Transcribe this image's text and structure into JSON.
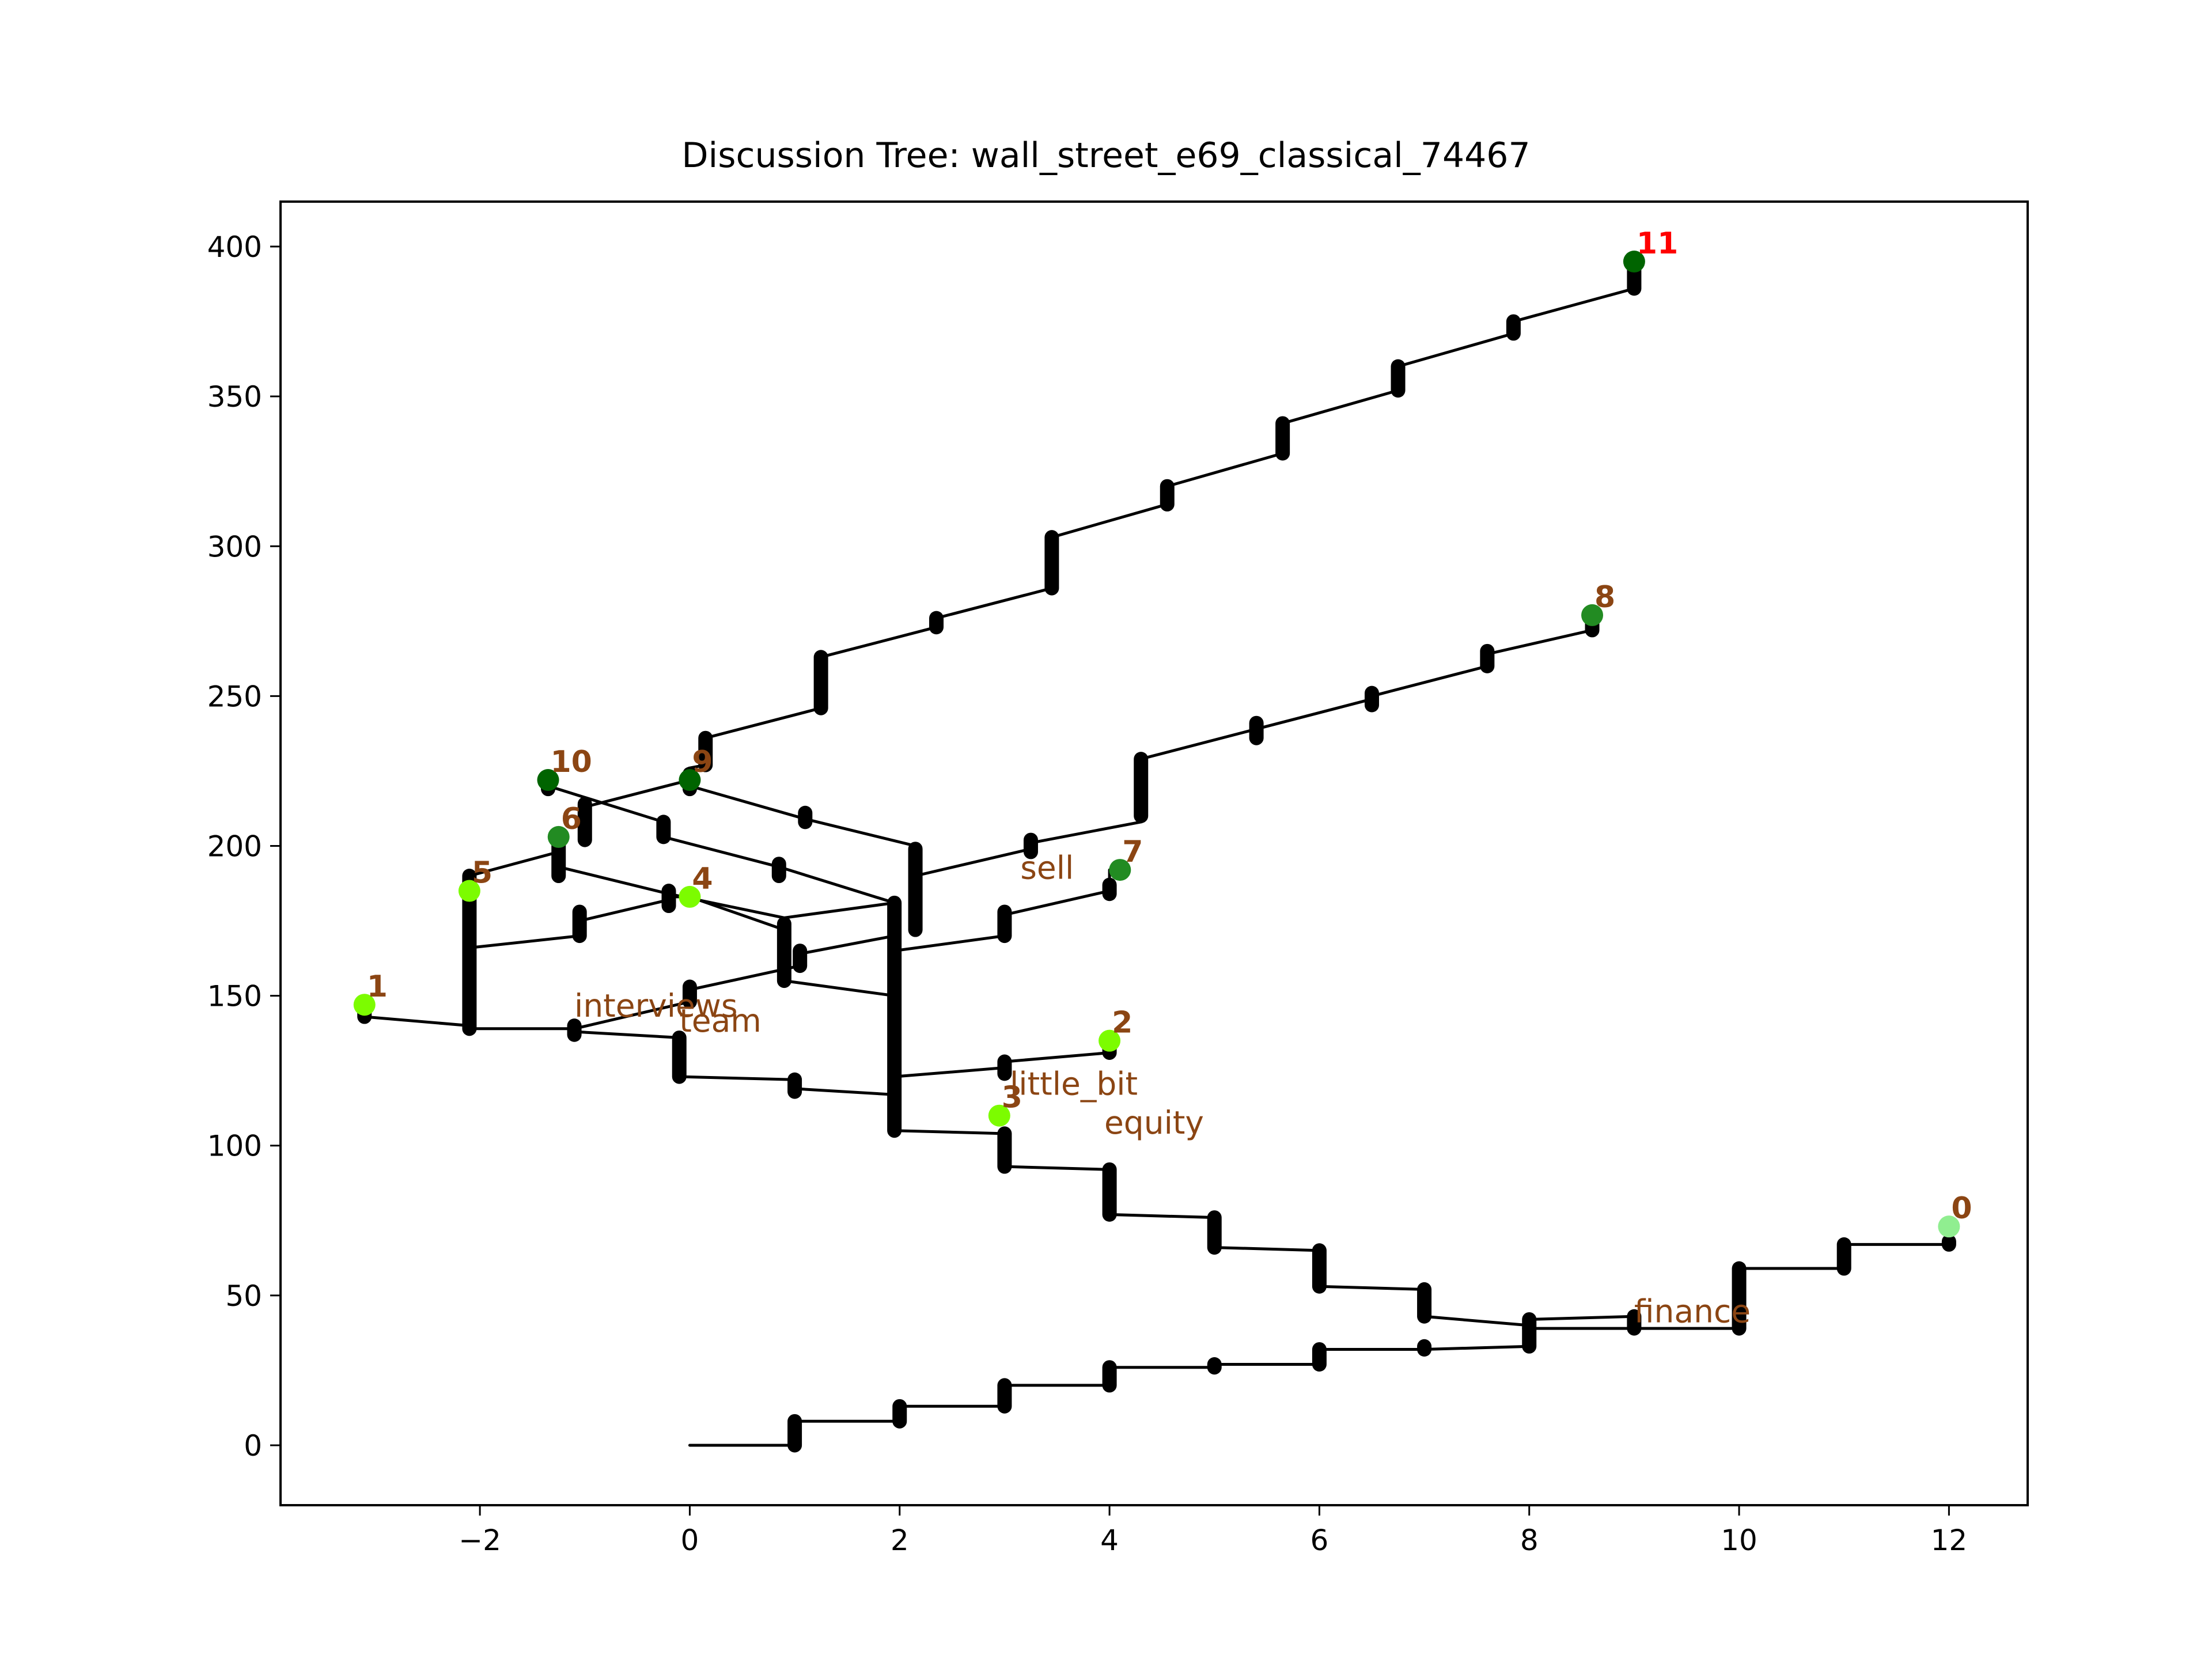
{
  "chart_data": {
    "type": "scatter",
    "title": "Discussion Tree: wall_street_e69_classical_74467",
    "xlabel": "",
    "ylabel": "",
    "xlim": [
      -3.9,
      12.75
    ],
    "ylim": [
      -20,
      415
    ],
    "x_ticks": [
      -2,
      0,
      2,
      4,
      6,
      8,
      10,
      12
    ],
    "x_tick_labels": [
      "−2",
      "0",
      "2",
      "4",
      "6",
      "8",
      "10",
      "12"
    ],
    "y_ticks": [
      0,
      50,
      100,
      150,
      200,
      250,
      300,
      350,
      400
    ],
    "y_tick_labels": [
      "0",
      "50",
      "100",
      "150",
      "200",
      "250",
      "300",
      "350",
      "400"
    ],
    "grid": false,
    "nodes": [
      {
        "id": "0",
        "x": 12.0,
        "y": 73,
        "color": "#90ee90",
        "label_color": "#8b4513"
      },
      {
        "id": "1",
        "x": -3.1,
        "y": 147,
        "color": "#7cfc00",
        "label_color": "#8b4513"
      },
      {
        "id": "2",
        "x": 4.0,
        "y": 135,
        "color": "#7cfc00",
        "label_color": "#8b4513"
      },
      {
        "id": "3",
        "x": 2.95,
        "y": 110,
        "color": "#7cfc00",
        "label_color": "#8b4513"
      },
      {
        "id": "4",
        "x": 0.0,
        "y": 183,
        "color": "#7cfc00",
        "label_color": "#8b4513"
      },
      {
        "id": "5",
        "x": -2.1,
        "y": 185,
        "color": "#7cfc00",
        "label_color": "#8b4513"
      },
      {
        "id": "6",
        "x": -1.25,
        "y": 203,
        "color": "#228b22",
        "label_color": "#8b4513"
      },
      {
        "id": "7",
        "x": 4.1,
        "y": 192,
        "color": "#228b22",
        "label_color": "#8b4513"
      },
      {
        "id": "8",
        "x": 8.6,
        "y": 277,
        "color": "#228b22",
        "label_color": "#8b4513"
      },
      {
        "id": "9",
        "x": 0.0,
        "y": 222,
        "color": "#006400",
        "label_color": "#8b4513"
      },
      {
        "id": "10",
        "x": -1.35,
        "y": 222,
        "color": "#006400",
        "label_color": "#8b4513"
      },
      {
        "id": "11",
        "x": 9.0,
        "y": 395,
        "color": "#006400",
        "label_color": "#ff0000"
      }
    ],
    "word_labels": [
      {
        "text": "finance",
        "x": 9.0,
        "y": 41
      },
      {
        "text": "equity",
        "x": 3.95,
        "y": 104
      },
      {
        "text": "little_bit",
        "x": 3.05,
        "y": 117
      },
      {
        "text": "interviews",
        "x": -1.1,
        "y": 143
      },
      {
        "text": "team",
        "x": -0.1,
        "y": 138
      },
      {
        "text": "sell",
        "x": 3.15,
        "y": 189
      }
    ],
    "paths": [
      [
        [
          0,
          0
        ],
        [
          1,
          0
        ],
        [
          1,
          8
        ],
        [
          2,
          8
        ],
        [
          2,
          13
        ],
        [
          3,
          13
        ],
        [
          3,
          20
        ],
        [
          4,
          20
        ],
        [
          4,
          26
        ],
        [
          5,
          26
        ],
        [
          5,
          27
        ],
        [
          6,
          27
        ],
        [
          6,
          32
        ],
        [
          7,
          32
        ],
        [
          7,
          32
        ],
        [
          8,
          33
        ],
        [
          8,
          39
        ],
        [
          9,
          39
        ],
        [
          9,
          39
        ],
        [
          10,
          39
        ],
        [
          10,
          59
        ],
        [
          11,
          59
        ],
        [
          11,
          67
        ],
        [
          12,
          67
        ],
        [
          12,
          73
        ]
      ],
      [
        [
          9,
          43
        ],
        [
          8,
          42
        ],
        [
          8,
          40
        ],
        [
          7,
          43
        ],
        [
          7,
          52
        ],
        [
          6,
          53
        ],
        [
          6,
          65
        ],
        [
          5,
          66
        ],
        [
          5,
          76
        ],
        [
          4,
          77
        ],
        [
          4,
          92
        ],
        [
          3,
          93
        ],
        [
          3,
          104
        ],
        [
          1.95,
          105
        ],
        [
          1.95,
          117
        ],
        [
          1,
          119
        ],
        [
          1,
          122
        ],
        [
          -0.1,
          123
        ],
        [
          -0.1,
          136
        ],
        [
          -1.1,
          138
        ],
        [
          -1.1,
          139
        ],
        [
          -2.1,
          139
        ],
        [
          -2.1,
          140
        ],
        [
          -3.1,
          143
        ],
        [
          -3.1,
          147
        ]
      ],
      [
        [
          1.95,
          110
        ],
        [
          1.95,
          123
        ],
        [
          3,
          126
        ],
        [
          3,
          128
        ],
        [
          4,
          131
        ],
        [
          4,
          135
        ]
      ],
      [
        [
          -2.1,
          140
        ],
        [
          -2.1,
          150
        ],
        [
          -2.1,
          160
        ],
        [
          -2.1,
          170
        ],
        [
          -2.1,
          180
        ],
        [
          -2.1,
          185
        ]
      ],
      [
        [
          -2.1,
          166
        ],
        [
          -1.05,
          170
        ],
        [
          -1.05,
          175
        ],
        [
          -0.2,
          182
        ],
        [
          -0.2,
          183
        ],
        [
          0,
          183
        ]
      ],
      [
        [
          -2.1,
          185
        ],
        [
          -2.1,
          190
        ],
        [
          -1.25,
          198
        ],
        [
          -1.25,
          203
        ]
      ],
      [
        [
          0,
          183
        ],
        [
          0.9,
          172
        ],
        [
          0.9,
          155
        ],
        [
          1.95,
          150
        ],
        [
          1.95,
          140
        ],
        [
          1.95,
          127
        ]
      ],
      [
        [
          -1.1,
          139
        ],
        [
          0,
          148
        ],
        [
          0,
          152
        ],
        [
          1.05,
          160
        ],
        [
          1.05,
          164
        ],
        [
          1.95,
          170
        ],
        [
          1.95,
          165
        ],
        [
          3,
          170
        ],
        [
          3,
          177
        ],
        [
          4,
          185
        ],
        [
          4,
          192
        ]
      ],
      [
        [
          -1.25,
          193
        ],
        [
          -0.2,
          184
        ],
        [
          0.9,
          176
        ],
        [
          1.95,
          181
        ],
        [
          1.95,
          170
        ]
      ],
      [
        [
          1.95,
          181
        ],
        [
          0.85,
          193
        ],
        [
          -0.25,
          203
        ],
        [
          -0.25,
          208
        ],
        [
          -1.35,
          220
        ],
        [
          -1.35,
          222
        ]
      ],
      [
        [
          0,
          220
        ],
        [
          1.1,
          209
        ],
        [
          2.15,
          200
        ],
        [
          2.15,
          172
        ]
      ],
      [
        [
          2.15,
          190
        ],
        [
          3.25,
          199
        ],
        [
          3.25,
          201
        ],
        [
          4.3,
          208
        ],
        [
          4.3,
          229
        ],
        [
          5.4,
          239
        ],
        [
          6.5,
          249
        ],
        [
          6.5,
          250
        ],
        [
          7.6,
          260
        ],
        [
          7.6,
          264
        ],
        [
          8.6,
          272
        ],
        [
          8.6,
          277
        ]
      ],
      [
        [
          -1.0,
          213
        ],
        [
          0,
          222
        ],
        [
          0,
          226
        ],
        [
          0.15,
          227
        ],
        [
          0.15,
          236
        ],
        [
          1.25,
          246
        ],
        [
          1.25,
          263
        ],
        [
          2.35,
          273
        ],
        [
          2.35,
          276
        ],
        [
          3.45,
          286
        ],
        [
          3.45,
          303
        ],
        [
          4.55,
          314
        ],
        [
          4.55,
          320
        ],
        [
          5.65,
          331
        ],
        [
          5.65,
          341
        ],
        [
          6.75,
          352
        ],
        [
          6.75,
          360
        ],
        [
          7.85,
          371
        ],
        [
          7.85,
          375
        ],
        [
          9,
          386
        ],
        [
          9,
          395
        ]
      ]
    ],
    "bars": [
      [
        1,
        0,
        1,
        8
      ],
      [
        2,
        8,
        2,
        13
      ],
      [
        3,
        13,
        3,
        20
      ],
      [
        4,
        20,
        4,
        26
      ],
      [
        5,
        26,
        5,
        27
      ],
      [
        6,
        27,
        6,
        32
      ],
      [
        7,
        32,
        7,
        33
      ],
      [
        8,
        33,
        8,
        39
      ],
      [
        9,
        39,
        9,
        43
      ],
      [
        10,
        39,
        10,
        59
      ],
      [
        11,
        59,
        11,
        67
      ],
      [
        12,
        67,
        12,
        68
      ],
      [
        8,
        39,
        8,
        42
      ],
      [
        7,
        43,
        7,
        52
      ],
      [
        6,
        53,
        6,
        65
      ],
      [
        5,
        66,
        5,
        76
      ],
      [
        4,
        77,
        4,
        92
      ],
      [
        3,
        93,
        3,
        104
      ],
      [
        1.95,
        105,
        1.95,
        181
      ],
      [
        1,
        118,
        1,
        122
      ],
      [
        -0.1,
        123,
        -0.1,
        136
      ],
      [
        -1.1,
        137,
        -1.1,
        140
      ],
      [
        -2.1,
        139,
        -2.1,
        190
      ],
      [
        -3.1,
        143,
        -3.1,
        146
      ],
      [
        3,
        124,
        3,
        128
      ],
      [
        4,
        131,
        4,
        133
      ],
      [
        -1.05,
        170,
        -1.05,
        178
      ],
      [
        -0.2,
        180,
        -0.2,
        185
      ],
      [
        -1.25,
        190,
        -1.25,
        203
      ],
      [
        0.9,
        155,
        0.9,
        174
      ],
      [
        1.05,
        160,
        1.05,
        165
      ],
      [
        0,
        148,
        0,
        153
      ],
      [
        3,
        170,
        3,
        178
      ],
      [
        4,
        184,
        4,
        187
      ],
      [
        0.85,
        190,
        0.85,
        194
      ],
      [
        -0.25,
        203,
        -0.25,
        208
      ],
      [
        -1.35,
        219,
        -1.35,
        222
      ],
      [
        -1.0,
        202,
        -1.0,
        214
      ],
      [
        0,
        219,
        0,
        224
      ],
      [
        1.1,
        208,
        1.1,
        211
      ],
      [
        2.15,
        172,
        2.15,
        199
      ],
      [
        3.25,
        198,
        3.25,
        202
      ],
      [
        4.3,
        210,
        4.3,
        229
      ],
      [
        5.4,
        236,
        5.4,
        241
      ],
      [
        6.5,
        247,
        6.5,
        251
      ],
      [
        7.6,
        260,
        7.6,
        265
      ],
      [
        8.6,
        272,
        8.6,
        276
      ],
      [
        0.15,
        227,
        0.15,
        236
      ],
      [
        1.25,
        246,
        1.25,
        263
      ],
      [
        2.35,
        273,
        2.35,
        276
      ],
      [
        3.45,
        286,
        3.45,
        303
      ],
      [
        4.55,
        314,
        4.55,
        320
      ],
      [
        5.65,
        331,
        5.65,
        341
      ],
      [
        6.75,
        352,
        6.75,
        360
      ],
      [
        7.85,
        371,
        7.85,
        375
      ],
      [
        9,
        386,
        9,
        392
      ]
    ]
  }
}
